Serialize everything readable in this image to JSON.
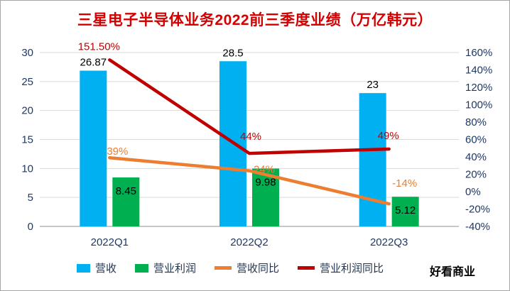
{
  "title": "三星电子半导体业务2022前三季度业绩（万亿韩元）",
  "watermark": "好看商业",
  "chart_data": {
    "type": "combo-bar-line",
    "categories": [
      "2022Q1",
      "2022Q2",
      "2022Q3"
    ],
    "bar_series": [
      {
        "key": "revenue",
        "name": "营收",
        "color": "#00B0F0",
        "axis": "left",
        "values": [
          26.87,
          28.5,
          23
        ],
        "labels": [
          "26.87",
          "28.5",
          "23"
        ],
        "label_position": "above"
      },
      {
        "key": "operating-profit",
        "name": "营业利润",
        "color": "#00B050",
        "axis": "left",
        "values": [
          8.45,
          9.98,
          5.12
        ],
        "labels": [
          "8.45",
          "9.98",
          "5.12"
        ],
        "label_position": "inside"
      }
    ],
    "line_series": [
      {
        "key": "revenue-yoy",
        "name": "营收同比",
        "color": "#ED7D31",
        "axis": "right",
        "values": [
          39,
          24,
          -14
        ],
        "labels": [
          "39%",
          "24%",
          "-14%"
        ]
      },
      {
        "key": "operating-profit-yoy",
        "name": "营业利润同比",
        "color": "#C00000",
        "axis": "right",
        "values": [
          151.5,
          44,
          49
        ],
        "labels": [
          "151.50%",
          "44%",
          "49%"
        ]
      }
    ],
    "left_axis": {
      "min": 0,
      "max": 30,
      "step": 5,
      "tick_labels": [
        "30",
        "25",
        "20",
        "15",
        "10",
        "5",
        "0"
      ]
    },
    "right_axis": {
      "min": -40,
      "max": 160,
      "step": 20,
      "tick_labels": [
        "160%",
        "140%",
        "120%",
        "100%",
        "80%",
        "60%",
        "40%",
        "20%",
        "0%",
        "-20%",
        "-40%"
      ]
    },
    "grid": true,
    "legend_position": "bottom",
    "legend": [
      "营收",
      "营业利润",
      "营收同比",
      "营业利润同比"
    ]
  },
  "colors": {
    "title": "#D40000",
    "axis_text": "#1F3864",
    "data_label": "#000000",
    "grid_line": "#D9D9D9",
    "axis_line": "#A6A6A6"
  }
}
